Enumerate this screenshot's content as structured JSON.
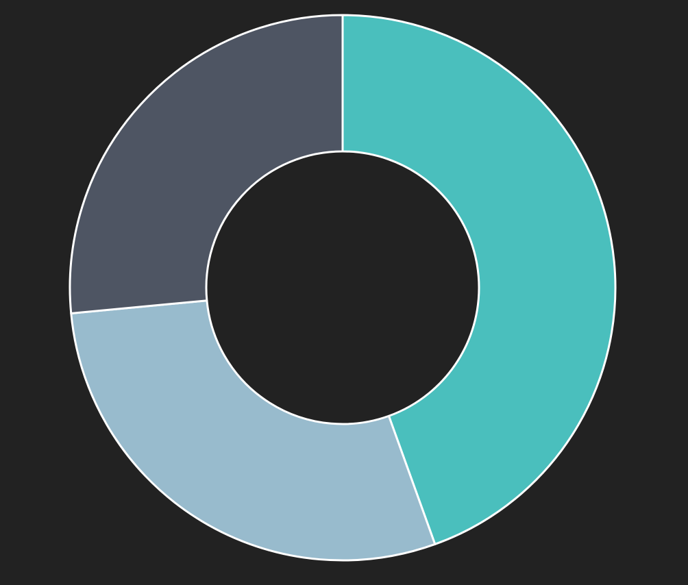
{
  "chart_data": {
    "type": "donut",
    "values": [
      44.5,
      29,
      26.5
    ],
    "colors": [
      "#4abfbd",
      "#98bbcd",
      "#4e5563"
    ],
    "background": "#222222"
  }
}
